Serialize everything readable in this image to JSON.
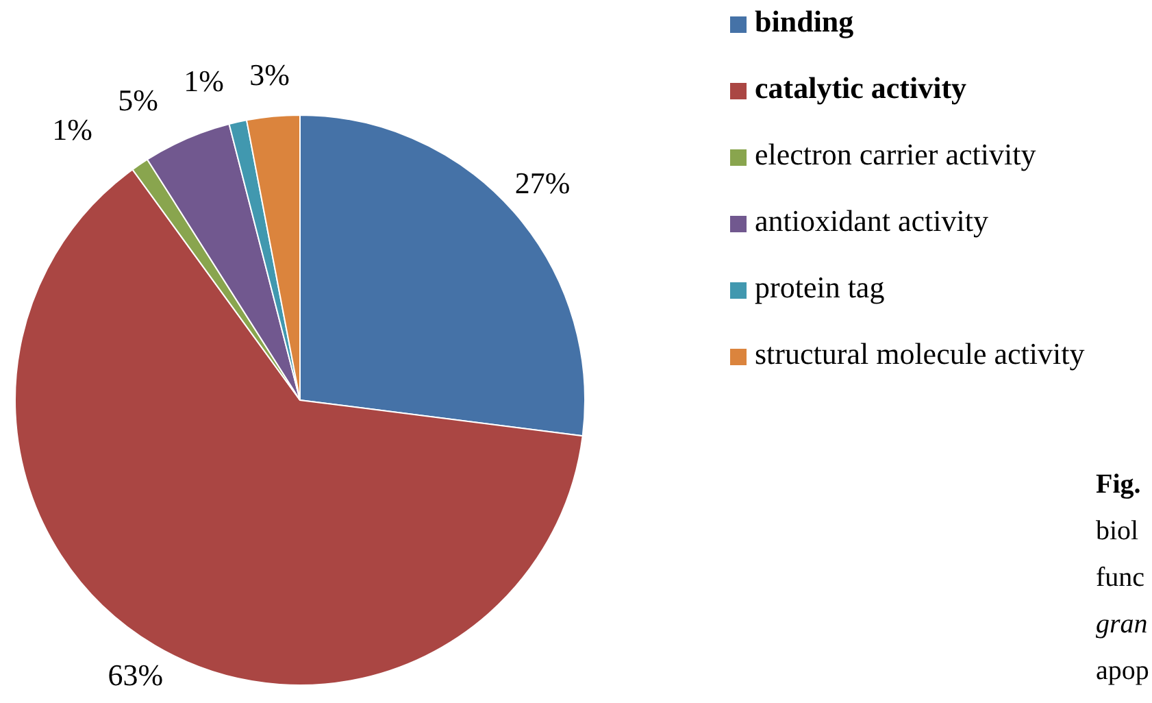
{
  "chart_data": {
    "type": "pie",
    "categories": [
      "binding",
      "catalytic activity",
      "electron carrier activity",
      "antioxidant activity",
      "protein tag",
      "structural molecule activity"
    ],
    "values": [
      27,
      63,
      1,
      5,
      1,
      3
    ],
    "colors": [
      "#4572a7",
      "#aa4643",
      "#89a54e",
      "#71588f",
      "#4198af",
      "#db843d"
    ],
    "value_labels": [
      "27%",
      "63%",
      "1%",
      "5%",
      "1%",
      "3%"
    ],
    "legend": "right",
    "annotations": [
      "Fig.",
      "biol",
      "func",
      "gran",
      "apop"
    ]
  }
}
